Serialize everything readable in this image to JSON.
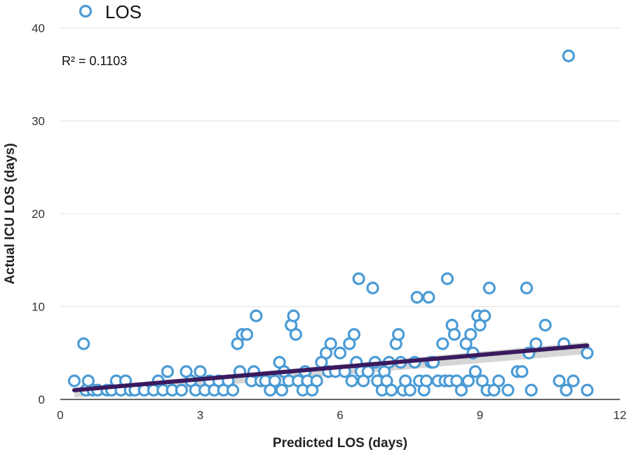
{
  "chart_data": {
    "type": "scatter",
    "title": "",
    "xlabel": "Predicted LOS (days)",
    "ylabel": "Actual ICU LOS (days)",
    "xlim": [
      0,
      12
    ],
    "ylim": [
      0,
      40
    ],
    "xticks": [
      0,
      3,
      6,
      9,
      12
    ],
    "yticks": [
      0,
      10,
      20,
      30,
      40
    ],
    "grid": "horizontal",
    "legend": {
      "position": "top-left",
      "label": "LOS"
    },
    "annotation": "R² = 0.1103",
    "colors": {
      "points": "#4a9bd6",
      "trendline": "#3a1a5e",
      "confidence_band": "#c8c8c8"
    },
    "series": [
      {
        "name": "LOS",
        "points": [
          [
            0.3,
            2
          ],
          [
            0.5,
            6
          ],
          [
            0.55,
            1
          ],
          [
            0.6,
            2
          ],
          [
            0.7,
            1
          ],
          [
            0.8,
            1
          ],
          [
            1.0,
            1
          ],
          [
            1.1,
            1
          ],
          [
            1.2,
            2
          ],
          [
            1.3,
            1
          ],
          [
            1.4,
            2
          ],
          [
            1.5,
            1
          ],
          [
            1.6,
            1
          ],
          [
            1.8,
            1
          ],
          [
            2.0,
            1
          ],
          [
            2.1,
            2
          ],
          [
            2.2,
            1
          ],
          [
            2.3,
            3
          ],
          [
            2.4,
            1
          ],
          [
            2.6,
            1
          ],
          [
            2.7,
            3
          ],
          [
            2.8,
            2
          ],
          [
            2.9,
            1
          ],
          [
            3.0,
            3
          ],
          [
            3.1,
            1
          ],
          [
            3.2,
            2
          ],
          [
            3.3,
            1
          ],
          [
            3.4,
            2
          ],
          [
            3.5,
            1
          ],
          [
            3.6,
            2
          ],
          [
            3.7,
            1
          ],
          [
            3.8,
            6
          ],
          [
            3.85,
            3
          ],
          [
            3.9,
            7
          ],
          [
            4.0,
            7
          ],
          [
            4.1,
            2
          ],
          [
            4.15,
            3
          ],
          [
            4.2,
            9
          ],
          [
            4.3,
            2
          ],
          [
            4.4,
            2
          ],
          [
            4.5,
            1
          ],
          [
            4.6,
            2
          ],
          [
            4.7,
            4
          ],
          [
            4.75,
            1
          ],
          [
            4.8,
            3
          ],
          [
            4.9,
            2
          ],
          [
            4.95,
            8
          ],
          [
            5.0,
            9
          ],
          [
            5.05,
            7
          ],
          [
            5.1,
            2
          ],
          [
            5.2,
            1
          ],
          [
            5.25,
            3
          ],
          [
            5.3,
            2
          ],
          [
            5.4,
            1
          ],
          [
            5.5,
            2
          ],
          [
            5.6,
            4
          ],
          [
            5.7,
            5
          ],
          [
            5.75,
            3
          ],
          [
            5.8,
            6
          ],
          [
            5.9,
            3
          ],
          [
            6.0,
            5
          ],
          [
            6.1,
            3
          ],
          [
            6.2,
            6
          ],
          [
            6.25,
            2
          ],
          [
            6.3,
            7
          ],
          [
            6.35,
            4
          ],
          [
            6.4,
            13
          ],
          [
            6.45,
            3
          ],
          [
            6.5,
            2
          ],
          [
            6.6,
            3
          ],
          [
            6.7,
            12
          ],
          [
            6.75,
            4
          ],
          [
            6.8,
            2
          ],
          [
            6.9,
            1
          ],
          [
            6.95,
            3
          ],
          [
            7.0,
            2
          ],
          [
            7.05,
            4
          ],
          [
            7.1,
            1
          ],
          [
            7.2,
            6
          ],
          [
            7.25,
            7
          ],
          [
            7.3,
            4
          ],
          [
            7.35,
            1
          ],
          [
            7.4,
            2
          ],
          [
            7.5,
            1
          ],
          [
            7.6,
            4
          ],
          [
            7.65,
            11
          ],
          [
            7.7,
            2
          ],
          [
            7.8,
            1
          ],
          [
            7.85,
            2
          ],
          [
            7.9,
            11
          ],
          [
            7.95,
            4
          ],
          [
            8.0,
            4
          ],
          [
            8.1,
            2
          ],
          [
            8.2,
            6
          ],
          [
            8.25,
            2
          ],
          [
            8.3,
            13
          ],
          [
            8.35,
            2
          ],
          [
            8.4,
            8
          ],
          [
            8.45,
            7
          ],
          [
            8.5,
            2
          ],
          [
            8.6,
            1
          ],
          [
            8.7,
            6
          ],
          [
            8.75,
            2
          ],
          [
            8.8,
            7
          ],
          [
            8.85,
            5
          ],
          [
            8.9,
            3
          ],
          [
            8.95,
            9
          ],
          [
            9.0,
            8
          ],
          [
            9.05,
            2
          ],
          [
            9.1,
            9
          ],
          [
            9.15,
            1
          ],
          [
            9.2,
            12
          ],
          [
            9.3,
            1
          ],
          [
            9.4,
            2
          ],
          [
            9.6,
            1
          ],
          [
            9.8,
            3
          ],
          [
            9.9,
            3
          ],
          [
            10.0,
            12
          ],
          [
            10.05,
            5
          ],
          [
            10.1,
            1
          ],
          [
            10.2,
            6
          ],
          [
            10.4,
            8
          ],
          [
            10.7,
            2
          ],
          [
            10.8,
            6
          ],
          [
            10.85,
            1
          ],
          [
            10.9,
            37
          ],
          [
            11.0,
            2
          ],
          [
            11.3,
            1
          ],
          [
            11.3,
            5
          ]
        ]
      }
    ],
    "trendline": {
      "x": [
        0.3,
        11.3
      ],
      "y": [
        1.0,
        5.8
      ]
    }
  }
}
